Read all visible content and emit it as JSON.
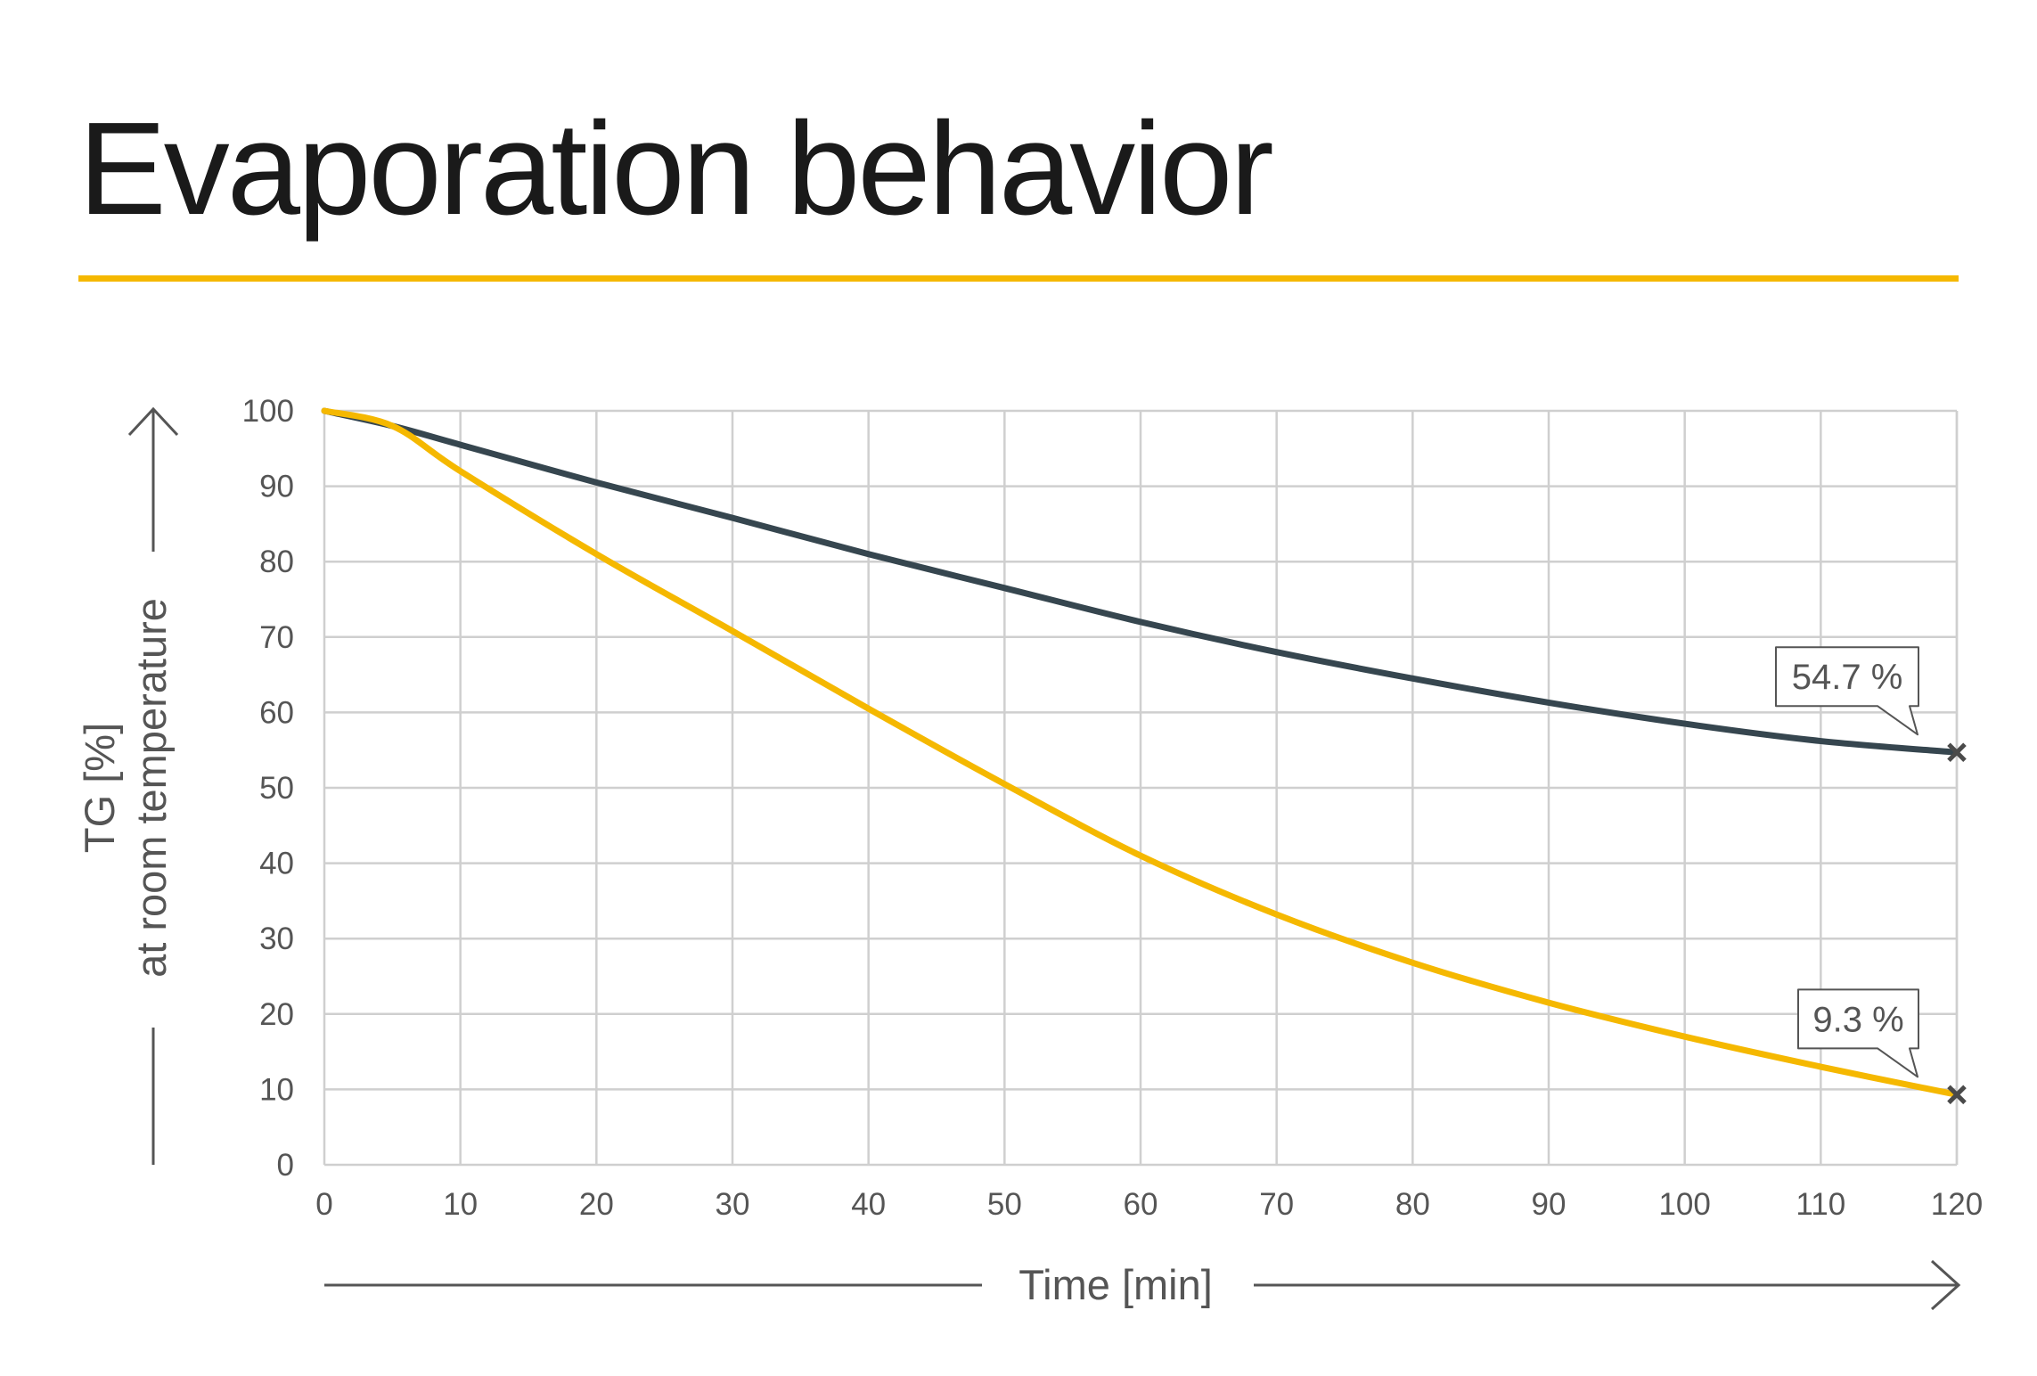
{
  "chart_data": {
    "type": "line",
    "title": "Evaporation behavior",
    "xlabel": "Time [min]",
    "ylabel": [
      "TG [%]",
      "at room temperature"
    ],
    "xlim": [
      0,
      120
    ],
    "ylim": [
      0,
      100
    ],
    "xticks": [
      0,
      10,
      20,
      30,
      40,
      50,
      60,
      70,
      80,
      90,
      100,
      110,
      120
    ],
    "yticks": [
      0,
      10,
      20,
      30,
      40,
      50,
      60,
      70,
      80,
      90,
      100
    ],
    "grid": true,
    "colors": {
      "accent": "#f5b800",
      "dark": "#36464f",
      "grid": "#cfcfcf",
      "text": "#555555"
    },
    "series": [
      {
        "color": "#36464f",
        "x": [
          0,
          5,
          10,
          20,
          30,
          40,
          50,
          60,
          70,
          80,
          90,
          100,
          110,
          120
        ],
        "y": [
          100,
          98,
          95.5,
          90.5,
          85.8,
          81,
          76.5,
          72,
          68,
          64.5,
          61.3,
          58.5,
          56.2,
          54.7
        ],
        "end_label": "54.7 %"
      },
      {
        "color": "#f5b800",
        "x": [
          0,
          5,
          10,
          20,
          30,
          40,
          50,
          60,
          70,
          80,
          90,
          100,
          110,
          120
        ],
        "y": [
          100,
          98,
          92,
          81,
          70.8,
          60.5,
          50.5,
          41,
          33.2,
          26.8,
          21.5,
          17,
          13,
          9.3
        ],
        "end_label": "9.3 %"
      }
    ]
  }
}
